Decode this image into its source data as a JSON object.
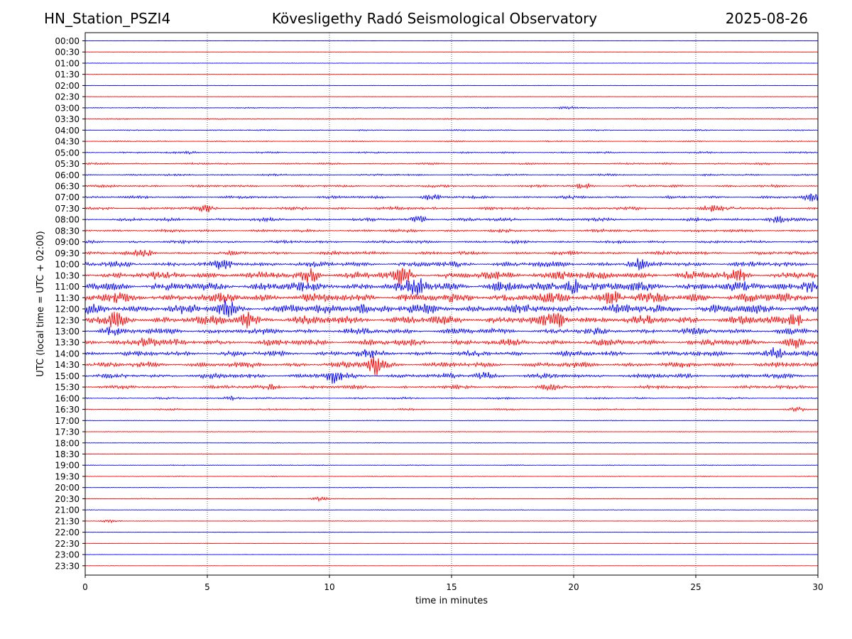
{
  "header": {
    "station": "HN_Station_PSZI4",
    "title": "Kövesligethy Radó Seismological Observatory",
    "date": "2025-08-26"
  },
  "colors": {
    "even_trace": "#0000ff",
    "odd_trace": "#ff0000",
    "axes": "#000000",
    "grid": "#000000"
  },
  "chart_data": {
    "type": "line",
    "xlabel": "time in minutes",
    "ylabel": "UTC (local time = UTC + 02:00)",
    "xlim": [
      0,
      30
    ],
    "x_ticks": [
      0,
      5,
      10,
      15,
      20,
      25,
      30
    ],
    "x_tick_labels": [
      "0",
      "5",
      "10",
      "15",
      "20",
      "25",
      "30"
    ],
    "grid": "vertical dotted lines at 5, 10, 15, 20, 25",
    "traces": [
      "00:00",
      "00:30",
      "01:00",
      "01:30",
      "02:00",
      "02:30",
      "03:00",
      "03:30",
      "04:00",
      "04:30",
      "05:00",
      "05:30",
      "06:00",
      "06:30",
      "07:00",
      "07:30",
      "08:00",
      "08:30",
      "09:00",
      "09:30",
      "10:00",
      "10:30",
      "11:00",
      "11:30",
      "12:00",
      "12:30",
      "13:00",
      "13:30",
      "14:00",
      "14:30",
      "15:00",
      "15:30",
      "16:00",
      "16:30",
      "17:00",
      "17:30",
      "18:00",
      "18:30",
      "19:00",
      "19:30",
      "20:00",
      "20:30",
      "21:00",
      "21:30",
      "22:00",
      "22:30",
      "23:00",
      "23:30"
    ],
    "activity_level": [
      0.3,
      0.3,
      0.35,
      0.35,
      0.4,
      0.4,
      0.9,
      0.9,
      1.0,
      1.0,
      1.4,
      1.5,
      1.6,
      2.0,
      2.4,
      2.6,
      2.8,
      2.4,
      2.4,
      3.0,
      4.5,
      6.5,
      8.0,
      8.0,
      8.0,
      7.5,
      5.0,
      5.5,
      4.5,
      4.5,
      4.0,
      3.0,
      1.6,
      1.4,
      0.6,
      0.6,
      0.5,
      0.5,
      0.7,
      0.6,
      0.6,
      0.7,
      0.5,
      0.5,
      0.4,
      0.35,
      0.3,
      0.3
    ],
    "bursts": [
      {
        "trace": "03:00",
        "minute": 19.7,
        "amp": 2
      },
      {
        "trace": "05:00",
        "minute": 4.3,
        "amp": 2
      },
      {
        "trace": "06:30",
        "minute": 20.4,
        "amp": 3
      },
      {
        "trace": "07:00",
        "minute": 14.2,
        "amp": 4
      },
      {
        "trace": "07:00",
        "minute": 29.8,
        "amp": 5
      },
      {
        "trace": "07:30",
        "minute": 5.0,
        "amp": 4
      },
      {
        "trace": "07:30",
        "minute": 25.6,
        "amp": 5
      },
      {
        "trace": "08:00",
        "minute": 13.7,
        "amp": 5
      },
      {
        "trace": "08:00",
        "minute": 28.3,
        "amp": 5
      },
      {
        "trace": "09:30",
        "minute": 2.4,
        "amp": 5
      },
      {
        "trace": "10:00",
        "minute": 5.7,
        "amp": 5
      },
      {
        "trace": "10:00",
        "minute": 22.6,
        "amp": 6
      },
      {
        "trace": "10:30",
        "minute": 9.2,
        "amp": 8
      },
      {
        "trace": "10:30",
        "minute": 13.0,
        "amp": 10
      },
      {
        "trace": "10:30",
        "minute": 19.5,
        "amp": 8
      },
      {
        "trace": "10:30",
        "minute": 26.7,
        "amp": 7
      },
      {
        "trace": "11:00",
        "minute": 13.7,
        "amp": 11
      },
      {
        "trace": "11:00",
        "minute": 20.0,
        "amp": 10
      },
      {
        "trace": "11:00",
        "minute": 29.7,
        "amp": 8
      },
      {
        "trace": "11:30",
        "minute": 21.6,
        "amp": 11
      },
      {
        "trace": "12:00",
        "minute": 5.8,
        "amp": 9
      },
      {
        "trace": "12:00",
        "minute": 11.2,
        "amp": 7
      },
      {
        "trace": "12:30",
        "minute": 1.2,
        "amp": 7
      },
      {
        "trace": "12:30",
        "minute": 6.6,
        "amp": 8
      },
      {
        "trace": "12:30",
        "minute": 19.3,
        "amp": 8
      },
      {
        "trace": "12:30",
        "minute": 29.1,
        "amp": 7
      },
      {
        "trace": "13:00",
        "minute": 1.0,
        "amp": 5
      },
      {
        "trace": "13:30",
        "minute": 2.5,
        "amp": 7
      },
      {
        "trace": "13:30",
        "minute": 29.0,
        "amp": 6
      },
      {
        "trace": "14:00",
        "minute": 11.5,
        "amp": 4
      },
      {
        "trace": "14:00",
        "minute": 28.3,
        "amp": 8
      },
      {
        "trace": "14:30",
        "minute": 11.9,
        "amp": 14
      },
      {
        "trace": "15:00",
        "minute": 10.2,
        "amp": 9
      },
      {
        "trace": "15:00",
        "minute": 16.3,
        "amp": 5
      },
      {
        "trace": "15:30",
        "minute": 7.7,
        "amp": 4
      },
      {
        "trace": "15:30",
        "minute": 19.0,
        "amp": 4
      },
      {
        "trace": "16:00",
        "minute": 6.0,
        "amp": 3
      },
      {
        "trace": "16:30",
        "minute": 29.1,
        "amp": 3
      },
      {
        "trace": "20:30",
        "minute": 9.6,
        "amp": 3
      },
      {
        "trace": "21:30",
        "minute": 1.0,
        "amp": 2
      }
    ]
  }
}
